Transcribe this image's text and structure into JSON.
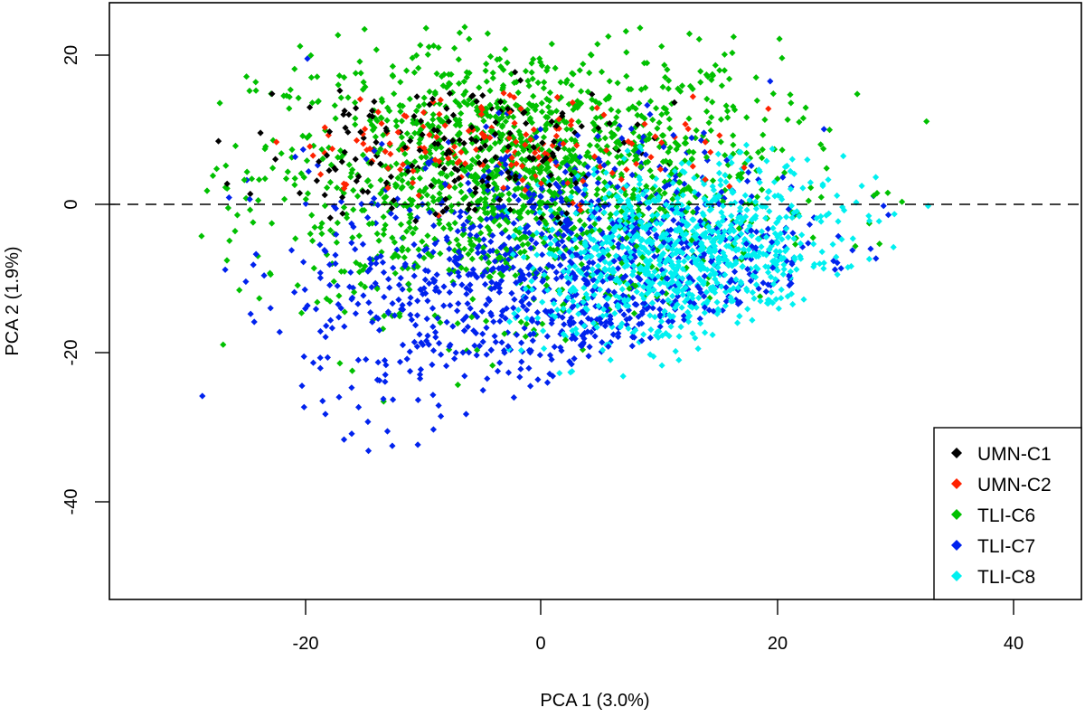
{
  "chart_data": {
    "type": "scatter",
    "title": "",
    "xlabel": "PCA 1 (3.0%)",
    "ylabel": "PCA 2 (1.9%)",
    "xlim": [
      -36.6,
      45.9
    ],
    "ylim": [
      -53.2,
      27.1
    ],
    "x_ticks": [
      -20,
      0,
      20,
      40
    ],
    "y_ticks": [
      20,
      0,
      -20,
      -40
    ],
    "x_tick_labels": [
      "-20",
      "0",
      "20",
      "40"
    ],
    "y_tick_labels": [
      "20",
      "0",
      "-20",
      "-40"
    ],
    "grid": false,
    "reference_line": {
      "axis": "y",
      "value": 0,
      "style": "dashed"
    },
    "legend_position": "bottom-right",
    "marker": "diamond",
    "series": [
      {
        "name": "UMN-C1",
        "color": "#000000",
        "n": 180,
        "center": [
          -8,
          7
        ],
        "spread": [
          8,
          5
        ],
        "xrange": [
          -32,
          18
        ],
        "yrange": [
          -3,
          18
        ]
      },
      {
        "name": "UMN-C2",
        "color": "#ff2200",
        "n": 160,
        "center": [
          -3,
          8
        ],
        "spread": [
          9,
          3.5
        ],
        "xrange": [
          -30,
          20
        ],
        "yrange": [
          -2,
          16
        ]
      },
      {
        "name": "TLI-C6",
        "color": "#00c000",
        "n": 1500,
        "center": [
          -2,
          4
        ],
        "spread": [
          11,
          9
        ],
        "xrange": [
          -29,
          43
        ],
        "yrange": [
          -48,
          24
        ]
      },
      {
        "name": "TLI-C7",
        "color": "#0022ee",
        "n": 1100,
        "center": [
          2,
          -8
        ],
        "spread": [
          11,
          9
        ],
        "xrange": [
          -29,
          40
        ],
        "yrange": [
          -50,
          20
        ]
      },
      {
        "name": "TLI-C8",
        "color": "#00f0f0",
        "n": 900,
        "center": [
          12,
          -7
        ],
        "spread": [
          7,
          6
        ],
        "xrange": [
          -3,
          40
        ],
        "yrange": [
          -30,
          8
        ]
      }
    ]
  },
  "legend": {
    "items": [
      {
        "label": "UMN-C1",
        "color": "#000000"
      },
      {
        "label": "UMN-C2",
        "color": "#ff2200"
      },
      {
        "label": "TLI-C6",
        "color": "#00c000"
      },
      {
        "label": "TLI-C7",
        "color": "#0022ee"
      },
      {
        "label": "TLI-C8",
        "color": "#00f0f0"
      }
    ]
  },
  "axes": {
    "x": {
      "title": "PCA 1 (3.0%)",
      "ticks": [
        "-20",
        "0",
        "20",
        "40"
      ]
    },
    "y": {
      "title": "PCA 2 (1.9%)",
      "ticks": [
        "20",
        "0",
        "-20",
        "-40"
      ]
    }
  }
}
